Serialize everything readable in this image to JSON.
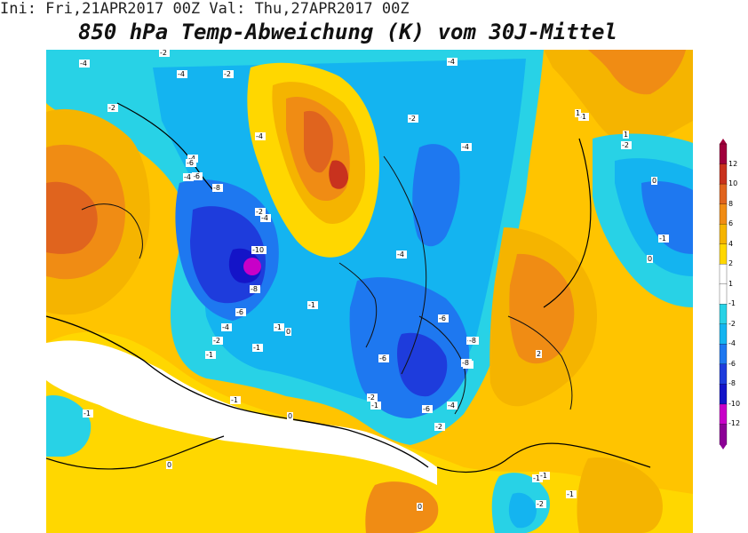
{
  "header": {
    "run_info": "Ini: Fri,21APR2017 00Z  Val: Thu,27APR2017 00Z",
    "title": "850 hPa Temp-Abweichung (K) vom 30J-Mittel"
  },
  "legend": {
    "ticks": [
      "12",
      "10",
      "8",
      "6",
      "4",
      "2",
      "1",
      "-1",
      "-2",
      "-4",
      "-6",
      "-8",
      "-10",
      "-12"
    ],
    "colors": [
      "#a0003c",
      "#c8321e",
      "#e0641e",
      "#f08c14",
      "#f5b400",
      "#ffd700",
      "#ffffff",
      "#ffffff",
      "#28d2e6",
      "#14b4f0",
      "#1e78f0",
      "#1e3cdc",
      "#1414c8",
      "#c800c8",
      "#8c0096"
    ]
  },
  "map": {
    "labels": [
      "-4",
      "-2",
      "-4",
      "-2",
      "-2",
      "-4",
      "-4",
      "-6",
      "-6",
      "-4",
      "-8",
      "-2",
      "-4",
      "-10",
      "-8",
      "-6",
      "-4",
      "-2",
      "-1",
      "-1",
      "-1",
      "0",
      "-1",
      "-4",
      "-2",
      "-4",
      "-1",
      "1",
      "-2",
      "-1",
      "0",
      "-4",
      "-6",
      "-6",
      "-8",
      "-8",
      "-6",
      "-8",
      "-4",
      "-6",
      "-2",
      "-1",
      "-1",
      "0",
      "-1",
      "-2",
      "0",
      "-1",
      "0",
      "-1",
      "-2",
      "-1",
      "0",
      "1",
      "2"
    ]
  }
}
